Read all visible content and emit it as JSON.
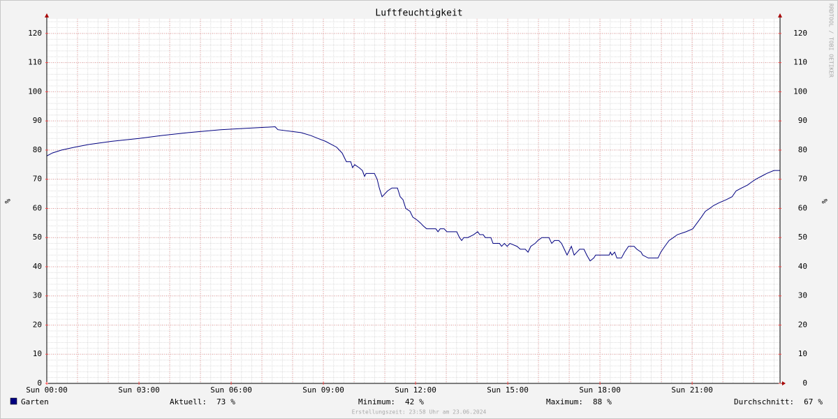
{
  "chart_data": {
    "type": "line",
    "title": "Luftfeuchtigkeit",
    "y_label": "%",
    "watermark": "RRDTOOL / TOBI OETIKER",
    "footer": "Erstellungszeit: 23:58 Uhr am 23.06.2024",
    "x": [
      0,
      0.18,
      0.48,
      0.91,
      1.41,
      2.11,
      3.0,
      3.75,
      4.61,
      5.66,
      7.43,
      7.52,
      8.27,
      8.59,
      8.82,
      9.07,
      9.25,
      9.43,
      9.61,
      9.75,
      9.89,
      9.95,
      10.02,
      10.16,
      10.27,
      10.34,
      10.39,
      10.66,
      10.75,
      10.82,
      10.91,
      11.0,
      11.09,
      11.23,
      11.41,
      11.5,
      11.59,
      11.68,
      11.82,
      11.91,
      12.05,
      12.16,
      12.25,
      12.36,
      12.66,
      12.73,
      12.8,
      12.93,
      13.02,
      13.34,
      13.43,
      13.5,
      13.57,
      13.7,
      13.89,
      14.02,
      14.09,
      14.2,
      14.27,
      14.45,
      14.52,
      14.73,
      14.8,
      14.89,
      14.98,
      15.07,
      15.3,
      15.41,
      15.57,
      15.66,
      15.75,
      15.89,
      15.98,
      16.11,
      16.34,
      16.43,
      16.52,
      16.66,
      16.75,
      16.84,
      16.93,
      17.07,
      17.16,
      17.25,
      17.34,
      17.48,
      17.57,
      17.68,
      17.8,
      17.86,
      18.3,
      18.34,
      18.39,
      18.48,
      18.55,
      18.7,
      18.8,
      18.93,
      19.11,
      19.2,
      19.34,
      19.39,
      19.57,
      19.89,
      19.98,
      20.11,
      20.25,
      20.39,
      20.52,
      20.8,
      21.02,
      21.16,
      21.3,
      21.43,
      21.57,
      21.7,
      21.89,
      22.11,
      22.3,
      22.43,
      22.61,
      22.8,
      22.93,
      23.07,
      23.25,
      23.43,
      23.66,
      23.86
    ],
    "series": [
      {
        "name": "Garten",
        "color": "#000080",
        "values": [
          78,
          79,
          80,
          81,
          82,
          83,
          84,
          85,
          86,
          87,
          88,
          87,
          86,
          85,
          84,
          83,
          82,
          81,
          79,
          76,
          76,
          74,
          75,
          74,
          73,
          71,
          72,
          72,
          70,
          67,
          64,
          65,
          66,
          67,
          67,
          64,
          63,
          60,
          59,
          57,
          56,
          55,
          54,
          53,
          53,
          52,
          53,
          53,
          52,
          52,
          50,
          49,
          50,
          50,
          51,
          52,
          51,
          51,
          50,
          50,
          48,
          48,
          47,
          48,
          47,
          48,
          47,
          46,
          46,
          45,
          47,
          48,
          49,
          50,
          50,
          48,
          49,
          49,
          48,
          46,
          44,
          47,
          44,
          45,
          46,
          46,
          44,
          42,
          43,
          44,
          44,
          45,
          44,
          45,
          43,
          43,
          45,
          47,
          47,
          46,
          45,
          44,
          43,
          43,
          45,
          47,
          49,
          50,
          51,
          52,
          53,
          55,
          57,
          59,
          60,
          61,
          62,
          63,
          64,
          66,
          67,
          68,
          69,
          70,
          71,
          72,
          73,
          73
        ]
      }
    ],
    "stats": [
      {
        "label": "Aktuell:",
        "value": 73,
        "unit": "%"
      },
      {
        "label": "Minimum:",
        "value": 42,
        "unit": "%"
      },
      {
        "label": "Maximum:",
        "value": 88,
        "unit": "%"
      },
      {
        "label": "Durchschnitt:",
        "value": 67,
        "unit": "%"
      }
    ],
    "xlim": [
      0,
      23.86
    ],
    "xticks": [
      {
        "value": 0,
        "label": "Sun 00:00"
      },
      {
        "value": 3,
        "label": "Sun 03:00"
      },
      {
        "value": 6,
        "label": "Sun 06:00"
      },
      {
        "value": 9,
        "label": "Sun 09:00"
      },
      {
        "value": 12,
        "label": "Sun 12:00"
      },
      {
        "value": 15,
        "label": "Sun 15:00"
      },
      {
        "value": 18,
        "label": "Sun 18:00"
      },
      {
        "value": 21,
        "label": "Sun 21:00"
      }
    ],
    "ylim": [
      0,
      125
    ],
    "yticks": [
      0,
      10,
      20,
      30,
      40,
      50,
      60,
      70,
      80,
      90,
      100,
      110,
      120
    ],
    "grid": true
  }
}
